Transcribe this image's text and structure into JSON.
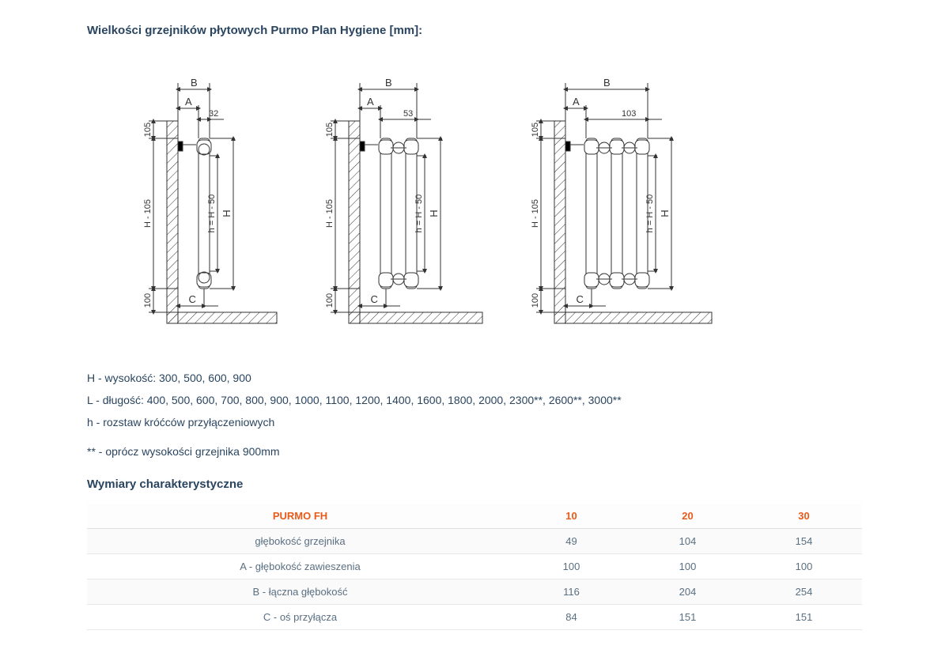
{
  "title": "Wielkości grzejników płytowych Purmo Plan Hygiene [mm]:",
  "diagrams": {
    "common_labels": {
      "A": "A",
      "B": "B",
      "C": "C",
      "H": "H",
      "h_eq": "h = H - 50",
      "H_105": "H - 105",
      "top_105": "105",
      "bot_100": "100"
    },
    "variants": [
      {
        "top_dim": "32",
        "panels": 1
      },
      {
        "top_dim": "53",
        "panels": 2
      },
      {
        "top_dim": "103",
        "panels": 3
      }
    ],
    "style": {
      "stroke": "#333333",
      "hatch": "#333333",
      "text": "#333333",
      "fontsize": 11,
      "fontsize_letters": 13,
      "line_width": 1
    }
  },
  "notes": {
    "H": "H - wysokość: 300, 500, 600, 900",
    "L": "L - długość: 400, 500, 600, 700, 800, 900, 1000, 1100, 1200, 1400, 1600, 1800, 2000, 2300**, 2600**, 3000**",
    "h": "h - rozstaw króćców przyłączeniowych",
    "footnote": "** - oprócz wysokości grzejnika 900mm"
  },
  "table": {
    "heading": "Wymiary charakterystyczne",
    "header": [
      "PURMO FH",
      "10",
      "20",
      "30"
    ],
    "rows": [
      [
        "głębokość grzejnika",
        "49",
        "104",
        "154"
      ],
      [
        "A - głębokość zawieszenia",
        "100",
        "100",
        "100"
      ],
      [
        "B - łączna głębokość",
        "116",
        "204",
        "254"
      ],
      [
        "C - oś przyłącza",
        "84",
        "151",
        "151"
      ]
    ]
  }
}
